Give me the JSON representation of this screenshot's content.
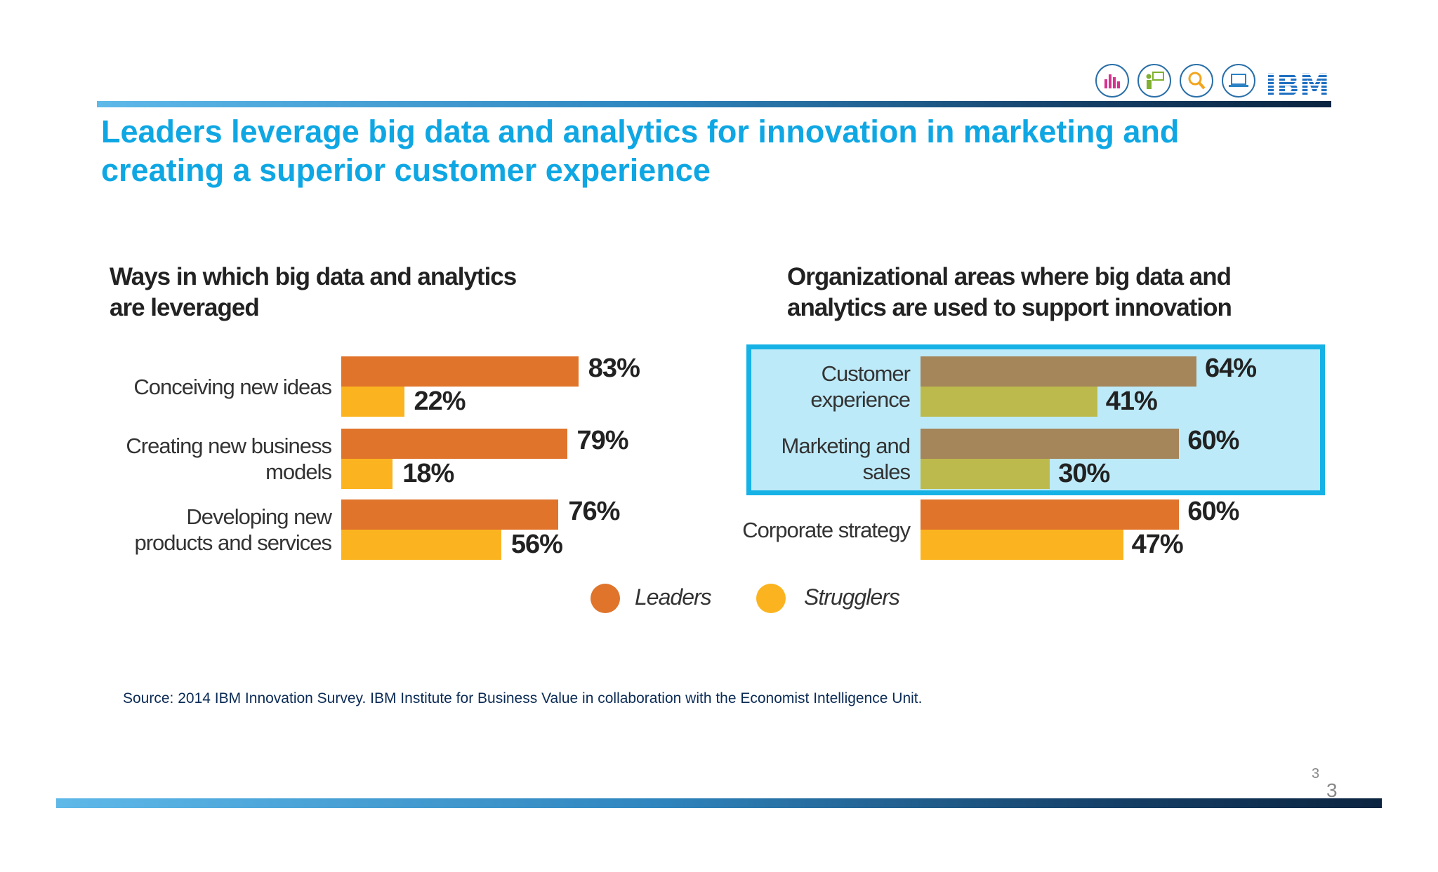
{
  "title": "Leaders leverage big data and analytics for innovation in marketing and creating a superior customer experience",
  "header_icons": [
    "bar-chart-icon",
    "presenter-icon",
    "magnifier-icon",
    "laptop-icon"
  ],
  "brand": "IBM",
  "chart_data": [
    {
      "type": "bar",
      "orientation": "horizontal",
      "title": "Ways in which big data and analytics are leveraged",
      "categories": [
        "Conceiving new ideas",
        "Creating new business models",
        "Developing new products and services"
      ],
      "category_lines": [
        [
          "Conceiving new ideas"
        ],
        [
          "Creating new business",
          "models"
        ],
        [
          "Developing new",
          "products and services"
        ]
      ],
      "series": [
        {
          "name": "Leaders",
          "values": [
            83,
            79,
            76
          ],
          "labels": [
            "83%",
            "79%",
            "76%"
          ],
          "color": "#e0742b"
        },
        {
          "name": "Strugglers",
          "values": [
            22,
            18,
            56
          ],
          "labels": [
            "22%",
            "18%",
            "56%"
          ],
          "color": "#fbb41f"
        }
      ],
      "xlim": [
        0,
        100
      ]
    },
    {
      "type": "bar",
      "orientation": "horizontal",
      "title": "Organizational areas where big data and analytics are used to support innovation",
      "categories": [
        "Customer experience",
        "Marketing and sales",
        "Corporate strategy"
      ],
      "category_lines": [
        [
          "Customer",
          "experience"
        ],
        [
          "Marketing and",
          "sales"
        ],
        [
          "Corporate strategy"
        ]
      ],
      "highlighted_categories": [
        "Customer experience",
        "Marketing and sales"
      ],
      "series": [
        {
          "name": "Leaders",
          "values": [
            64,
            60,
            60
          ],
          "labels": [
            "64%",
            "60%",
            "60%"
          ],
          "color": "#e0742b",
          "highlight_color": "#a5855a"
        },
        {
          "name": "Strugglers",
          "values": [
            41,
            30,
            47
          ],
          "labels": [
            "41%",
            "30%",
            "47%"
          ],
          "color": "#fbb41f",
          "highlight_color": "#bdba4d"
        }
      ],
      "xlim": [
        0,
        100
      ]
    }
  ],
  "legend": [
    {
      "label": "Leaders",
      "color": "#e0742b"
    },
    {
      "label": "Strugglers",
      "color": "#fbb41f"
    }
  ],
  "source": "Source: 2014 IBM Innovation Survey. IBM Institute for Business Value in collaboration with the Economist Intelligence Unit.",
  "page_number": "3",
  "page_number_large": "3"
}
